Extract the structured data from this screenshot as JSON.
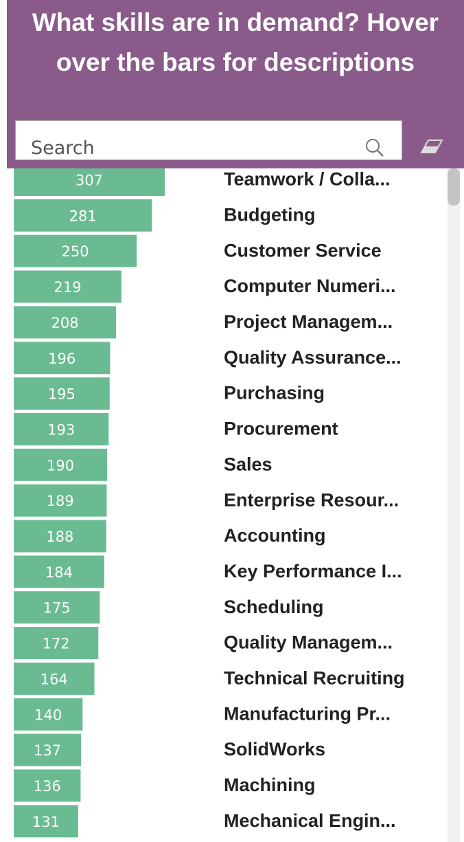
{
  "search_placeholder": "Search",
  "chart_data": {
    "type": "bar",
    "orientation": "horizontal",
    "title": "What skills are in demand? Hover over the bars for descriptions",
    "color": "#6abb92",
    "categories": [
      "Teamwork / Colla...",
      "Budgeting",
      "Customer Service",
      "Computer Numeri...",
      "Project Managem...",
      "Quality Assurance...",
      "Purchasing",
      "Procurement",
      "Sales",
      "Enterprise Resour...",
      "Accounting",
      "Key Performance I...",
      "Scheduling",
      "Quality Managem...",
      "Technical Recruiting",
      "Manufacturing Pr...",
      "SolidWorks",
      "Machining",
      "Mechanical Engin..."
    ],
    "values": [
      307,
      281,
      250,
      219,
      208,
      196,
      195,
      193,
      190,
      189,
      188,
      184,
      175,
      172,
      164,
      140,
      137,
      136,
      131
    ]
  }
}
